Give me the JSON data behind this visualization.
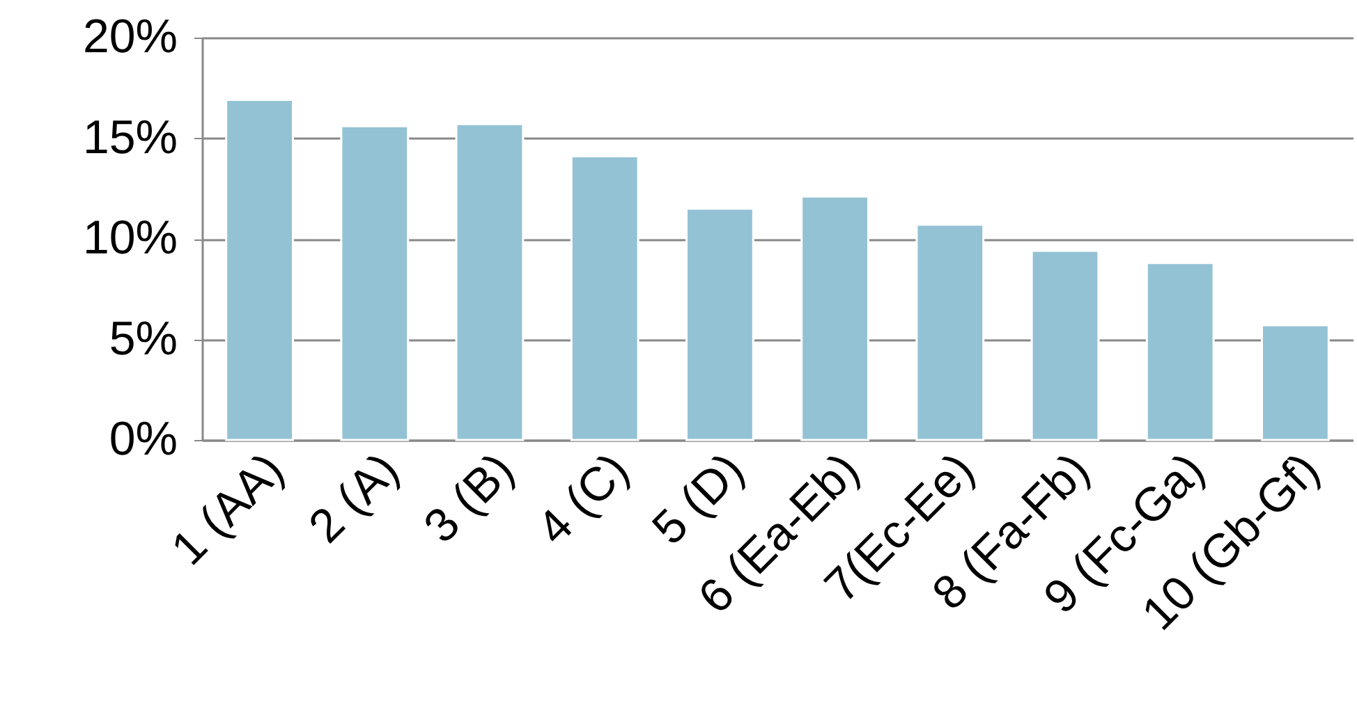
{
  "chart_data": {
    "type": "bar",
    "categories": [
      "1 (AA)",
      "2 (A)",
      "3 (B)",
      "4 (C)",
      "5 (D)",
      "6 (Ea-Eb)",
      "7(Ec-Ee)",
      "8 (Fa-Fb)",
      "9 (Fc-Ga)",
      "10 (Gb-Gf)"
    ],
    "values": [
      16.9,
      15.6,
      15.7,
      14.1,
      11.5,
      12.1,
      10.7,
      9.4,
      8.8,
      5.7
    ],
    "color": "#93c2d4",
    "ylim": [
      0,
      20
    ],
    "yticks": [
      {
        "value": 0,
        "label": "0%"
      },
      {
        "value": 5,
        "label": "5%"
      },
      {
        "value": 10,
        "label": "10%"
      },
      {
        "value": 15,
        "label": "15%"
      },
      {
        "value": 20,
        "label": "20%"
      }
    ],
    "grid": "y"
  }
}
